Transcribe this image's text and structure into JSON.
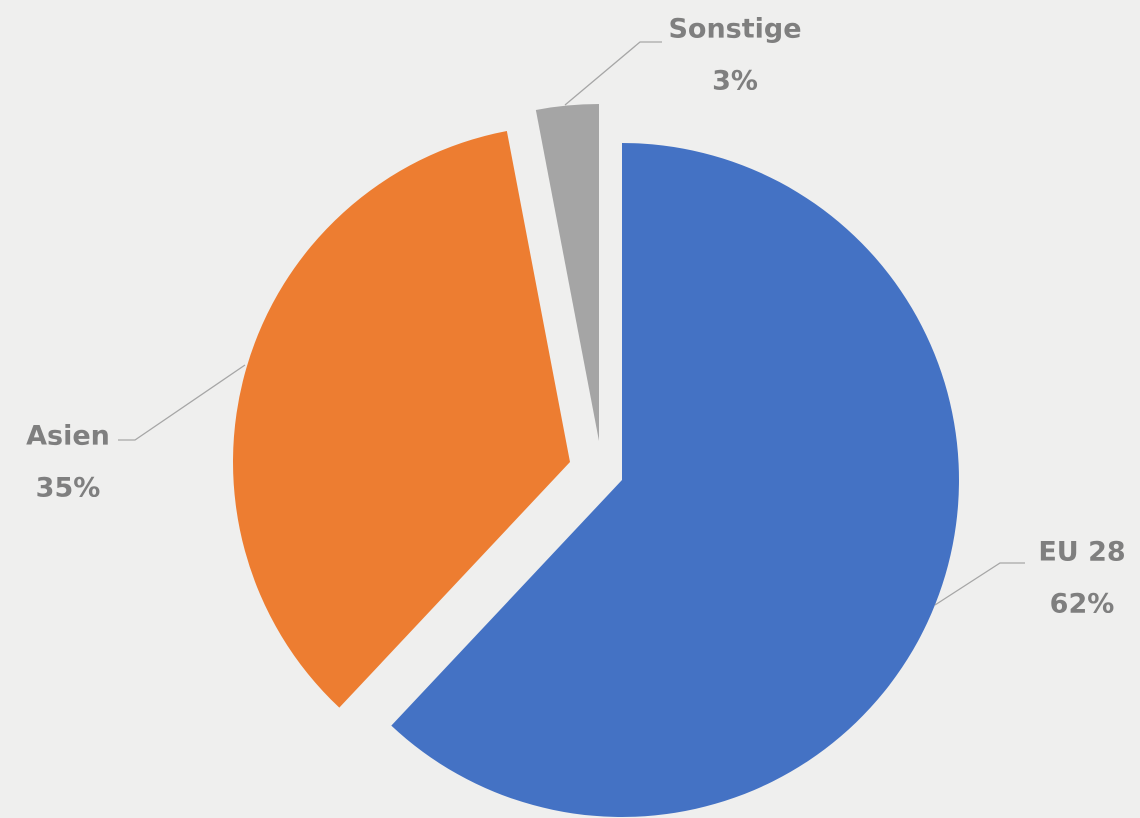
{
  "chart_data": {
    "type": "pie",
    "categories": [
      "EU 28",
      "Asien",
      "Sonstige"
    ],
    "values": [
      62,
      35,
      3
    ],
    "value_labels": [
      "62%",
      "35%",
      "3%"
    ],
    "colors": [
      "#4472c4",
      "#ed7d31",
      "#a5a5a5"
    ]
  }
}
